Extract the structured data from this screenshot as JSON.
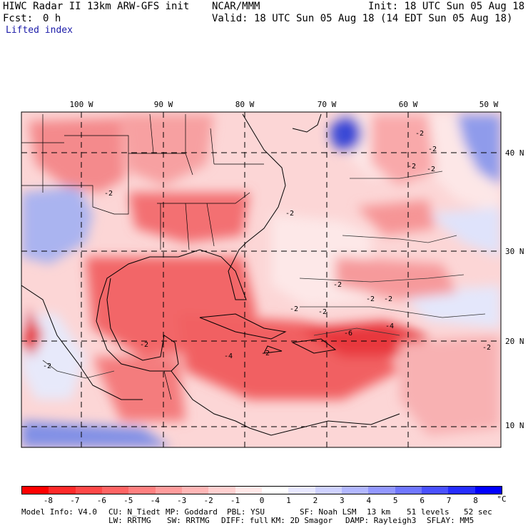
{
  "header": {
    "title": "HIWC Radar II 13km ARW-GFS init",
    "org": "NCAR/MMM",
    "init": "Init: 18 UTC Sun 05 Aug 18",
    "fcst_label": "Fcst:",
    "fcst_value": "0 h",
    "valid": "Valid: 18 UTC Sun 05 Aug 18 (14 EDT Sun 05 Aug 18)",
    "field": "Lifted index"
  },
  "map": {
    "lon_labels": [
      "100 W",
      "90 W",
      "80 W",
      "70 W",
      "60 W",
      "50 W"
    ],
    "lat_labels": [
      "40 N",
      "30 N",
      "20 N",
      "10 N"
    ],
    "contour_labels": [
      "-2",
      "-2",
      "-2",
      "-2",
      "-2",
      "-2",
      "-2",
      "-2",
      "-2",
      "-2",
      "-2",
      "-2",
      "-2",
      "-6",
      "-4",
      "-4",
      "-2",
      "-2"
    ],
    "colors": {
      "strong_neg": "#e8282d",
      "neg": "#f47c7e",
      "weak_neg": "#fbc3c3",
      "pos": "#b9c2f5",
      "strong_pos": "#3b47d8"
    }
  },
  "colorbar": {
    "values": [
      "-8",
      "-7",
      "-6",
      "-5",
      "-4",
      "-3",
      "-2",
      "-1",
      "0",
      "1",
      "2",
      "3",
      "4",
      "5",
      "6",
      "7",
      "8"
    ],
    "unit": "°C",
    "colors": [
      "#ff0000",
      "#ff2a2a",
      "#ff4848",
      "#ff6464",
      "#ff8080",
      "#ff9c9c",
      "#ffb6b6",
      "#ffd0d0",
      "#ffe8e8",
      "#ffffff",
      "#e8e8ff",
      "#cfd2ff",
      "#b2b7ff",
      "#9398ff",
      "#7077ff",
      "#4a51ff",
      "#262dff",
      "#0000ff"
    ]
  },
  "footer": {
    "line1_left": "Model Info: V4.0",
    "line1_cu": "CU: N_Tiedt",
    "line1_mp": "MP: Goddard",
    "line1_pbl": "PBL: YSU",
    "line1_sf": "SF: Noah LSM",
    "line1_res": "13 km",
    "line1_levels": "51 levels",
    "line1_dt": "52 sec",
    "line2_lw": "LW: RRTMG",
    "line2_sw": "SW: RRTMG",
    "line2_diff": "DIFF: full",
    "line2_km": "KM: 2D Smagor",
    "line2_damp": "DAMP: Rayleigh3",
    "line2_sflay": "SFLAY: MM5"
  }
}
